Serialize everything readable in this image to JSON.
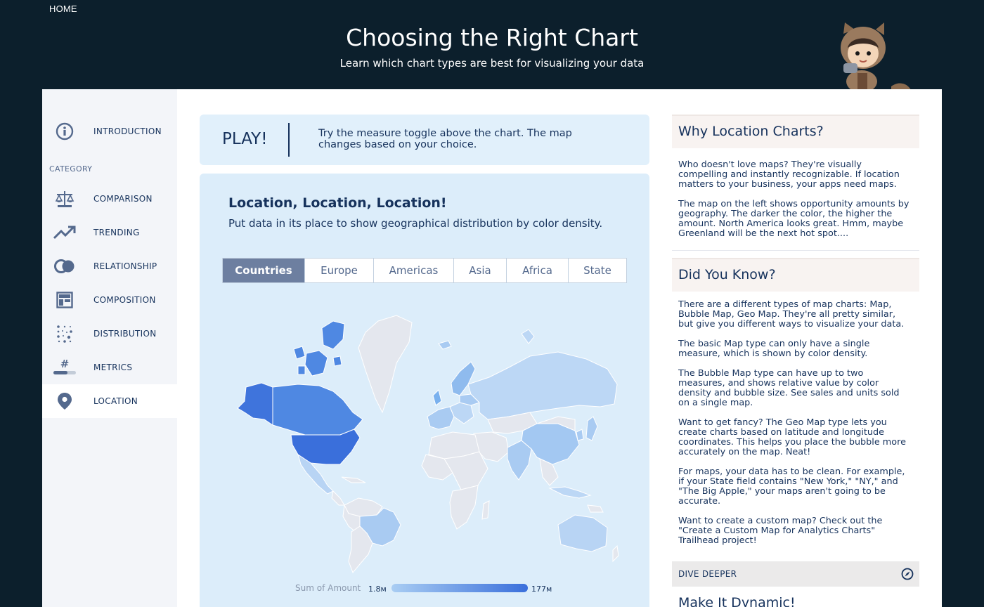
{
  "header": {
    "home_label": "HOME",
    "title": "Choosing the Right Chart",
    "subtitle": "Learn which chart types are best for visualizing your data"
  },
  "sidebar": {
    "category_label": "CATEGORY",
    "items": [
      {
        "label": "INTRODUCTION",
        "icon": "info-icon"
      },
      {
        "label": "COMPARISON",
        "icon": "scale-icon"
      },
      {
        "label": "TRENDING",
        "icon": "trend-icon"
      },
      {
        "label": "RELATIONSHIP",
        "icon": "rings-icon"
      },
      {
        "label": "COMPOSITION",
        "icon": "layout-icon"
      },
      {
        "label": "DISTRIBUTION",
        "icon": "dots-icon"
      },
      {
        "label": "METRICS",
        "icon": "hash-icon"
      },
      {
        "label": "LOCATION",
        "icon": "map-pin-icon"
      }
    ],
    "active": "LOCATION"
  },
  "play": {
    "label": "PLAY!",
    "text": "Try the measure toggle above the chart. The map changes based on your choice."
  },
  "card": {
    "title": "Location, Location, Location!",
    "subtitle": "Put data in its place to show geographical distribution by color density.",
    "tabs": [
      "Countries",
      "Europe",
      "Americas",
      "Asia",
      "Africa",
      "State"
    ],
    "selected_tab": "Countries"
  },
  "legend": {
    "label": "Sum of Amount",
    "min": "1.8м",
    "max": "177м"
  },
  "colors": {
    "background": "#0c1f2c",
    "map_high": "#3a6fdb",
    "map_mid": "#7ab1ee",
    "map_low": "#bcd7f5",
    "map_none": "#e4e7ee"
  },
  "right": {
    "why_title": "Why Location Charts?",
    "why_p1": "Who doesn't love maps? They're visually compelling and instantly recognizable. If location matters to your business, your apps need maps.",
    "why_p2": "The map on the left shows opportunity amounts by geography. The darker the color, the higher the amount. North America looks great. Hmm, maybe Greenland will be the next hot spot....",
    "know_title": "Did You Know?",
    "know_p1": "There are a different types of map charts: Map, Bubble Map, Geo Map. They're all pretty similar, but give you different ways to visualize your data.",
    "know_p2": "The basic Map type can only have a single measure, which is shown by color density.",
    "know_p3": "The Bubble Map type can have up to two measures, and shows relative value by color density and bubble size. See sales and units sold on a single map.",
    "know_p4": "Want to get fancy? The Geo Map type lets you create charts based on latitude and longitude coordinates. This helps you place the bubble more accurately on the map. Neat!",
    "know_p5": "For maps, your data has to be clean. For example, if your State field contains \"New York,\" \"NY,\" and \"The Big Apple,\" your maps aren't going to be accurate.",
    "know_p6": "Want to create a custom map? Check out the \"Create a Custom Map for Analytics Charts\" Trailhead project!",
    "dive_label": "DIVE DEEPER",
    "dynamic_title": "Make It Dynamic!"
  }
}
